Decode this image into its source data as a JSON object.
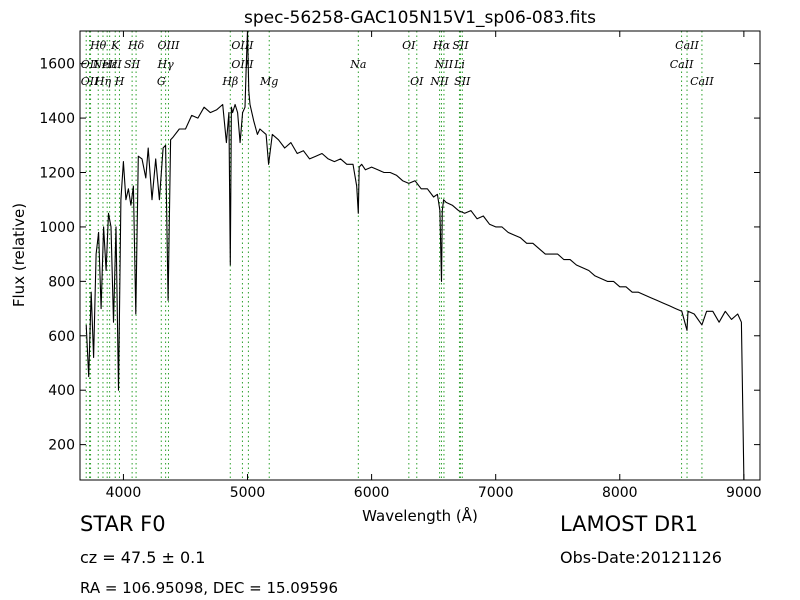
{
  "chart_data": {
    "type": "line",
    "title": "spec-56258-GAC105N15V1_sp06-083.fits",
    "xlabel": "Wavelength (Å)",
    "ylabel": "Flux (relative)",
    "xlim": [
      3650,
      9130
    ],
    "ylim": [
      70,
      1720
    ],
    "xticks": [
      4000,
      5000,
      6000,
      7000,
      8000,
      9000
    ],
    "yticks": [
      200,
      400,
      600,
      800,
      1000,
      1200,
      1400,
      1600
    ],
    "grid": false,
    "series": [
      {
        "color": "#000000",
        "x": [
          3700,
          3720,
          3740,
          3760,
          3780,
          3800,
          3820,
          3840,
          3860,
          3880,
          3900,
          3920,
          3940,
          3960,
          3980,
          4000,
          4020,
          4040,
          4060,
          4080,
          4100,
          4120,
          4150,
          4180,
          4200,
          4230,
          4260,
          4290,
          4320,
          4340,
          4360,
          4380,
          4400,
          4450,
          4500,
          4550,
          4600,
          4650,
          4700,
          4750,
          4800,
          4830,
          4850,
          4861,
          4870,
          4880,
          4900,
          4920,
          4940,
          4960,
          4980,
          4990,
          5000,
          5010,
          5020,
          5050,
          5080,
          5100,
          5150,
          5170,
          5200,
          5250,
          5300,
          5350,
          5400,
          5450,
          5500,
          5550,
          5600,
          5650,
          5700,
          5750,
          5800,
          5850,
          5880,
          5893,
          5900,
          5920,
          5950,
          6000,
          6050,
          6100,
          6150,
          6200,
          6250,
          6300,
          6350,
          6400,
          6450,
          6500,
          6530,
          6550,
          6563,
          6570,
          6580,
          6600,
          6650,
          6700,
          6750,
          6800,
          6850,
          6900,
          6950,
          7000,
          7050,
          7100,
          7150,
          7200,
          7250,
          7300,
          7350,
          7400,
          7450,
          7500,
          7550,
          7600,
          7650,
          7700,
          7750,
          7800,
          7850,
          7900,
          7950,
          8000,
          8050,
          8100,
          8150,
          8200,
          8250,
          8300,
          8350,
          8400,
          8450,
          8500,
          8542,
          8550,
          8600,
          8662,
          8700,
          8750,
          8800,
          8850,
          8900,
          8950,
          8980,
          9000
        ],
        "y": [
          640,
          450,
          760,
          520,
          900,
          980,
          700,
          1000,
          840,
          1050,
          1000,
          650,
          1000,
          400,
          1100,
          1240,
          1100,
          1140,
          1080,
          1150,
          680,
          1260,
          1250,
          1180,
          1290,
          1100,
          1250,
          1100,
          1290,
          1300,
          730,
          1320,
          1330,
          1360,
          1360,
          1410,
          1400,
          1440,
          1420,
          1430,
          1450,
          1310,
          1420,
          860,
          1440,
          1420,
          1450,
          1420,
          1310,
          1420,
          1440,
          1600,
          1720,
          1500,
          1450,
          1390,
          1340,
          1360,
          1340,
          1230,
          1340,
          1320,
          1290,
          1310,
          1270,
          1280,
          1250,
          1260,
          1270,
          1250,
          1240,
          1250,
          1230,
          1230,
          1150,
          1050,
          1220,
          1230,
          1210,
          1220,
          1210,
          1200,
          1200,
          1190,
          1170,
          1160,
          1170,
          1140,
          1140,
          1110,
          1120,
          1060,
          800,
          1060,
          1100,
          1090,
          1080,
          1060,
          1050,
          1060,
          1030,
          1040,
          1010,
          1000,
          1000,
          980,
          970,
          960,
          940,
          940,
          920,
          900,
          900,
          900,
          880,
          880,
          860,
          850,
          840,
          820,
          810,
          800,
          800,
          780,
          780,
          760,
          760,
          750,
          740,
          730,
          720,
          710,
          700,
          690,
          620,
          690,
          680,
          640,
          690,
          690,
          650,
          690,
          660,
          680,
          650,
          60
        ]
      }
    ],
    "line_annotations": [
      {
        "label": "Hθ",
        "x": 3797,
        "row": 0
      },
      {
        "label": "OII",
        "x": 3727,
        "row": 1
      },
      {
        "label": "OII",
        "x": 3727,
        "row": 2
      },
      {
        "label": "Hη",
        "x": 3835,
        "row": 2
      },
      {
        "label": "K",
        "x": 3934,
        "row": 0
      },
      {
        "label": "Hε",
        "x": 3889,
        "row": 1
      },
      {
        "label": "NeIII",
        "x": 3869,
        "row": 1
      },
      {
        "label": "SII",
        "x": 4070,
        "row": 1
      },
      {
        "label": "H",
        "x": 3968,
        "row": 2
      },
      {
        "label": "Hδ",
        "x": 4102,
        "row": 0
      },
      {
        "label": "OIII",
        "x": 4363,
        "row": 0
      },
      {
        "label": "Hγ",
        "x": 4340,
        "row": 1
      },
      {
        "label": "G",
        "x": 4305,
        "row": 2
      },
      {
        "label": "OIII",
        "x": 4959,
        "row": 0
      },
      {
        "label": "OIII",
        "x": 4959,
        "row": 1
      },
      {
        "label": "Hβ",
        "x": 4861,
        "row": 2
      },
      {
        "label": "Mg",
        "x": 5175,
        "row": 2
      },
      {
        "label": "Na",
        "x": 5893,
        "row": 1
      },
      {
        "label": "OI",
        "x": 6300,
        "row": 0
      },
      {
        "label": "OI",
        "x": 6364,
        "row": 2
      },
      {
        "label": "Hα",
        "x": 6563,
        "row": 0
      },
      {
        "label": "SII",
        "x": 6716,
        "row": 0
      },
      {
        "label": "NII",
        "x": 6583,
        "row": 1
      },
      {
        "label": "Li",
        "x": 6708,
        "row": 1
      },
      {
        "label": "NII",
        "x": 6548,
        "row": 2
      },
      {
        "label": "SII",
        "x": 6731,
        "row": 2
      },
      {
        "label": "CaII",
        "x": 8542,
        "row": 0
      },
      {
        "label": "CaII",
        "x": 8498,
        "row": 1
      },
      {
        "label": "CaII",
        "x": 8662,
        "row": 2
      }
    ],
    "line_markers_x": [
      3700,
      3727,
      3735,
      3797,
      3835,
      3869,
      3889,
      3934,
      3968,
      4070,
      4102,
      4305,
      4340,
      4363,
      4861,
      4959,
      5007,
      5175,
      5893,
      6300,
      6364,
      6548,
      6563,
      6583,
      6708,
      6716,
      6731,
      8498,
      8542,
      8662
    ],
    "marker_color": "#2ca02c"
  },
  "info": {
    "object_type": "STAR   F0",
    "survey": "LAMOST DR1",
    "cz": "cz = 47.5  ± 0.1",
    "obs_date": "Obs-Date:20121126",
    "ra_dec": "RA = 106.95098, DEC = 15.09596"
  }
}
